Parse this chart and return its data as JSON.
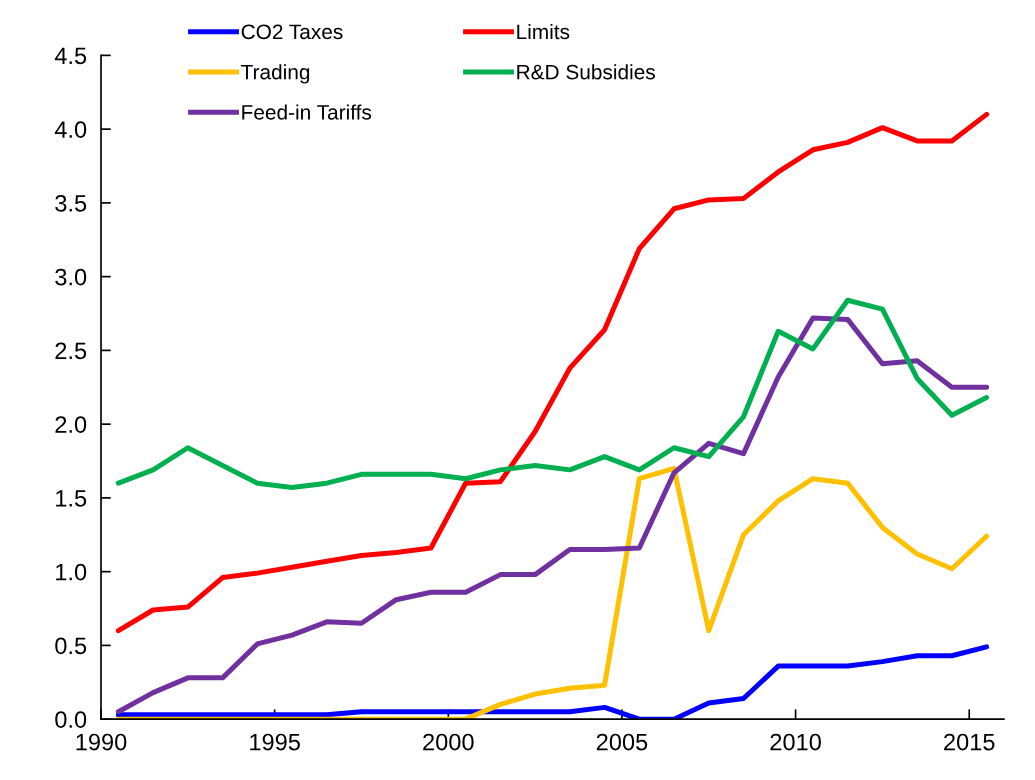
{
  "chart_data": {
    "type": "line",
    "x": [
      1990.5,
      1991.5,
      1992.5,
      1993.5,
      1994.5,
      1995.5,
      1996.5,
      1997.5,
      1998.5,
      1999.5,
      2000.5,
      2001.5,
      2002.5,
      2003.5,
      2004.5,
      2005.5,
      2006.5,
      2007.5,
      2008.5,
      2009.5,
      2010.5,
      2011.5,
      2012.5,
      2013.5,
      2014.5,
      2015.5
    ],
    "series": [
      {
        "name": "CO2 Taxes",
        "color": "#0000ff",
        "values": [
          0.03,
          0.03,
          0.03,
          0.03,
          0.03,
          0.03,
          0.03,
          0.05,
          0.05,
          0.05,
          0.05,
          0.05,
          0.05,
          0.05,
          0.08,
          0,
          0,
          0.11,
          0.14,
          0.36,
          0.36,
          0.36,
          0.39,
          0.43,
          0.43,
          0.49
        ]
      },
      {
        "name": "Trading",
        "color": "#ffc000",
        "values": [
          0,
          0,
          0,
          0,
          0,
          0,
          0,
          0,
          0,
          0,
          0,
          0.1,
          0.17,
          0.21,
          0.23,
          1.63,
          1.7,
          0.6,
          1.25,
          1.48,
          1.63,
          1.6,
          1.3,
          1.12,
          1.02,
          1.24
        ]
      },
      {
        "name": "Feed-in Tariffs",
        "color": "#7030a0",
        "values": [
          0.05,
          0.18,
          0.28,
          0.28,
          0.51,
          0.57,
          0.66,
          0.65,
          0.81,
          0.86,
          0.86,
          0.98,
          0.98,
          1.15,
          1.15,
          1.16,
          1.67,
          1.87,
          1.8,
          2.32,
          2.72,
          2.71,
          2.41,
          2.43,
          2.25,
          2.25
        ]
      },
      {
        "name": "Limits",
        "color": "#ff0000",
        "values": [
          0.6,
          0.74,
          0.76,
          0.96,
          0.99,
          1.03,
          1.07,
          1.11,
          1.13,
          1.16,
          1.6,
          1.61,
          1.95,
          2.38,
          2.64,
          3.19,
          3.46,
          3.52,
          3.53,
          3.71,
          3.86,
          3.91,
          4.01,
          3.92,
          3.92,
          4.1
        ]
      },
      {
        "name": "R&D Subsidies",
        "color": "#00b050",
        "values": [
          1.6,
          1.69,
          1.84,
          1.72,
          1.6,
          1.57,
          1.6,
          1.66,
          1.66,
          1.66,
          1.63,
          1.69,
          1.72,
          1.69,
          1.78,
          1.69,
          1.84,
          1.78,
          2.05,
          2.63,
          2.51,
          2.84,
          2.78,
          2.31,
          2.06,
          2.18
        ]
      }
    ],
    "xlim": [
      1990,
      2016
    ],
    "xticks": [
      1990,
      1995,
      2000,
      2005,
      2010,
      2015
    ],
    "ylim": [
      0,
      4.5
    ],
    "yticks": [
      {
        "value": 0,
        "label": "0.0"
      },
      {
        "value": 0.5,
        "label": "0.5"
      },
      {
        "value": 1,
        "label": "1.0"
      },
      {
        "value": 1.5,
        "label": "1.5"
      },
      {
        "value": 2,
        "label": "2.0"
      },
      {
        "value": 2.5,
        "label": "2.5"
      },
      {
        "value": 3,
        "label": "3.0"
      },
      {
        "value": 3.5,
        "label": "3.5"
      },
      {
        "value": 4,
        "label": "4.0"
      },
      {
        "value": 4.5,
        "label": "4.5"
      }
    ],
    "grid": false,
    "legend": "top left",
    "marker": "none",
    "line_style": "solid"
  }
}
